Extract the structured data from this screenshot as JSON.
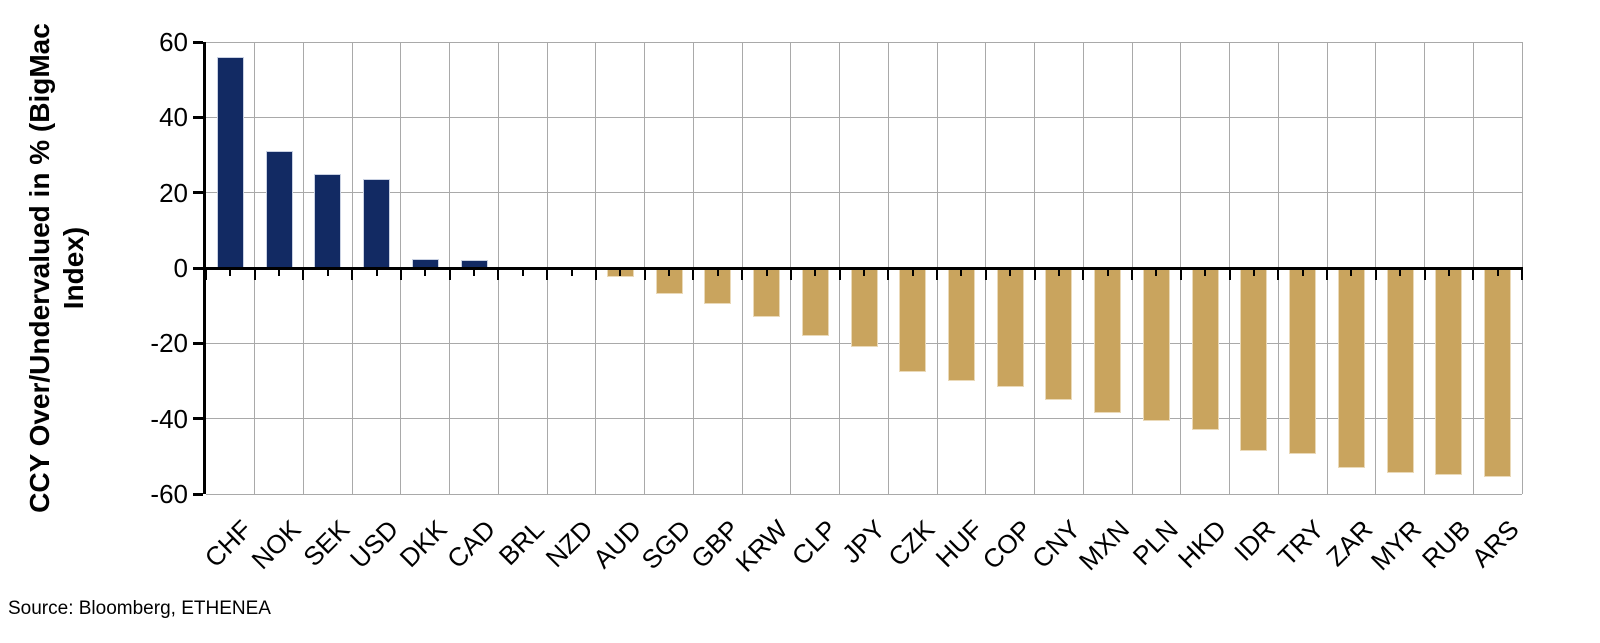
{
  "chart_data": {
    "type": "bar",
    "title": "",
    "categories": [
      "CHF",
      "NOK",
      "SEK",
      "USD",
      "DKK",
      "CAD",
      "BRL",
      "NZD",
      "AUD",
      "SGD",
      "GBP",
      "KRW",
      "CLP",
      "JPY",
      "CZK",
      "HUF",
      "COP",
      "CNY",
      "MXN",
      "PLN",
      "HKD",
      "IDR",
      "TRY",
      "ZAR",
      "MYR",
      "RUB",
      "ARS"
    ],
    "values": [
      56,
      31,
      25,
      23.5,
      2.5,
      2,
      0,
      0,
      -2.5,
      -7,
      -9.5,
      -13,
      -18,
      -21,
      -27.5,
      -30,
      -31.5,
      -35,
      -38.5,
      -40.5,
      -43,
      -48.5,
      -49.5,
      -53,
      -54.5,
      -55,
      -55.5
    ],
    "xlabel": "",
    "ylabel_line1": "CCY Over/Undervalued in % (BigMac",
    "ylabel_line2": "Index)",
    "ylim": [
      -60,
      60
    ],
    "yticks": [
      60,
      40,
      20,
      0,
      -20,
      -40,
      -60
    ],
    "grid": true,
    "legend": "none",
    "positive_color": "#122a63",
    "negative_color": "#c9a45e"
  },
  "source_note": "Source: Bloomberg, ETHENEA"
}
